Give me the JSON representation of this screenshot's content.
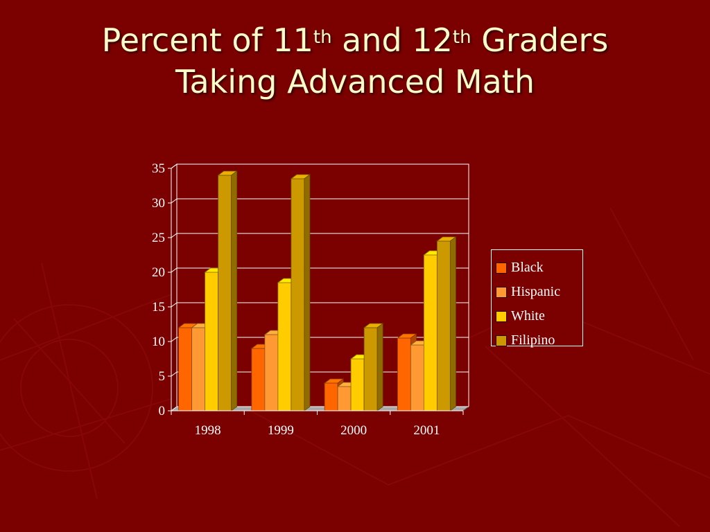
{
  "slide": {
    "title_line1_a": "Percent of 11",
    "title_sup1": "th",
    "title_line1_b": " and 12",
    "title_sup2": "th",
    "title_line1_c": " Graders",
    "title_line2": "Taking Advanced Math"
  },
  "colors": {
    "background": "#7b0000",
    "text": "#fffbc8"
  },
  "chart_data": {
    "type": "bar",
    "categories": [
      "1998",
      "1999",
      "2000",
      "2001"
    ],
    "series": [
      {
        "name": "Black",
        "color": "#ff6600",
        "values": [
          12,
          9,
          4,
          10.5
        ]
      },
      {
        "name": "Hispanic",
        "color": "#ff9933",
        "values": [
          12,
          11,
          3.5,
          9.5
        ]
      },
      {
        "name": "White",
        "color": "#ffcc00",
        "values": [
          20,
          18.5,
          7.5,
          22.5
        ]
      },
      {
        "name": "Filipino",
        "color": "#cc9900",
        "values": [
          34,
          33.5,
          12,
          24.5
        ]
      }
    ],
    "yticks": [
      0,
      5,
      10,
      15,
      20,
      25,
      30,
      35
    ],
    "ylim": [
      0,
      35
    ],
    "grid": true,
    "legend": "right",
    "style": "3d-column"
  }
}
